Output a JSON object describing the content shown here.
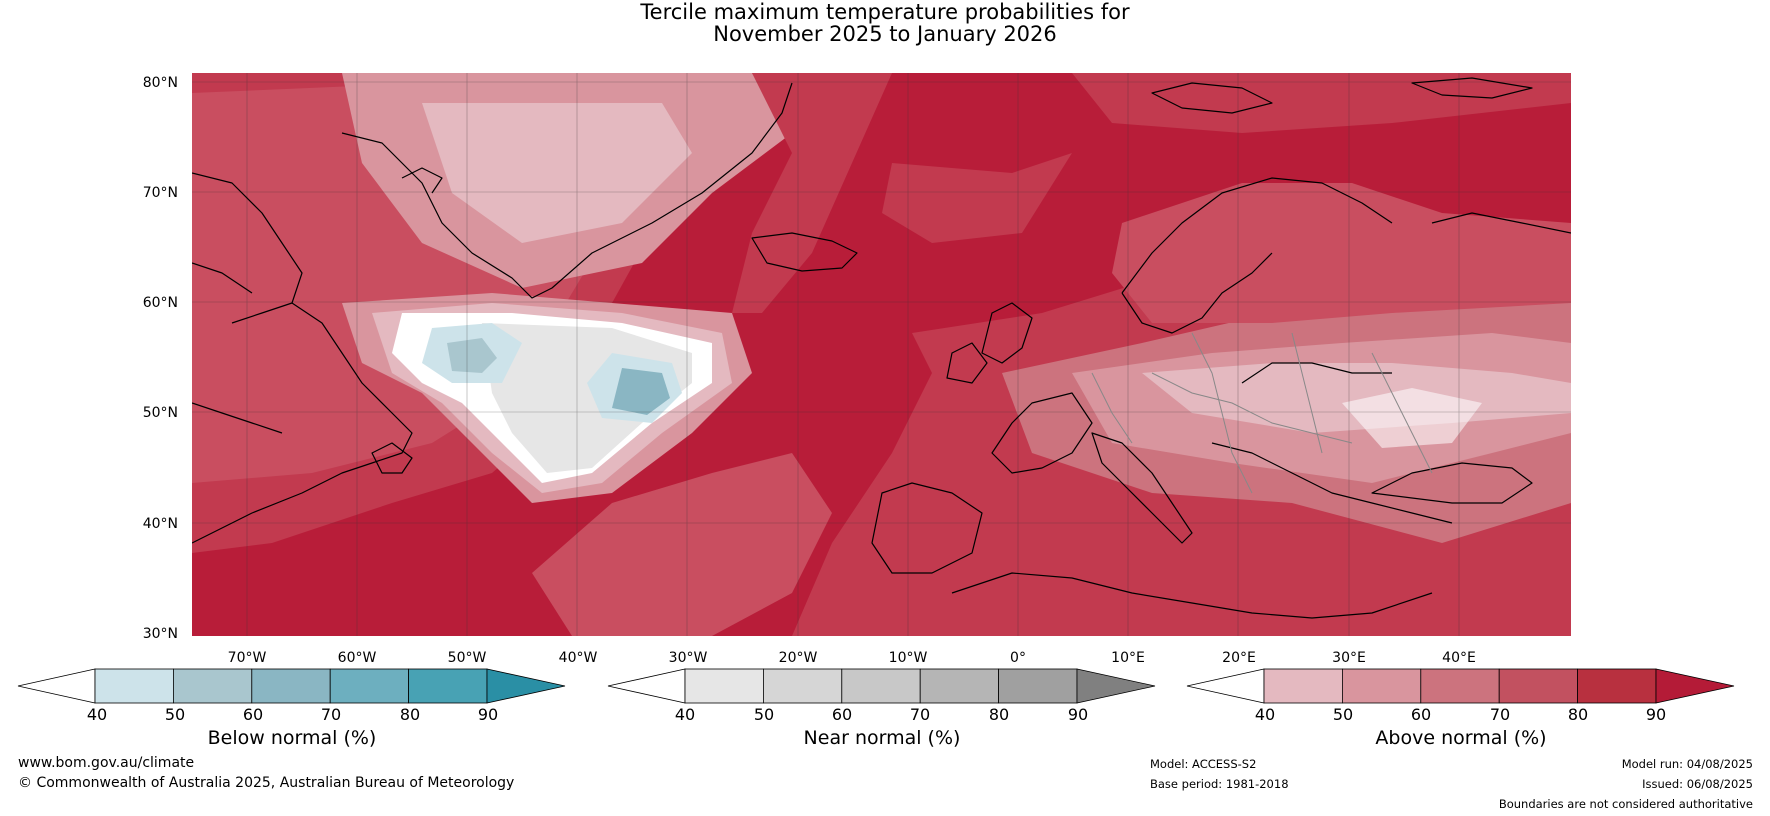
{
  "title_line1": "Tercile maximum temperature probabilities for",
  "title_line2": "November 2025 to January 2026",
  "lat_labels": [
    "80°N",
    "70°N",
    "60°N",
    "50°N",
    "40°N",
    "30°N"
  ],
  "lon_labels": [
    "70°W",
    "60°W",
    "50°W",
    "40°W",
    "30°W",
    "20°W",
    "10°W",
    "0°",
    "10°E",
    "20°E",
    "30°E",
    "40°E"
  ],
  "colorbars": [
    {
      "label": "Below normal (%)",
      "ticks": [
        "40",
        "50",
        "60",
        "70",
        "80",
        "90"
      ],
      "colors": [
        "#ffffff",
        "#cde3ea",
        "#a9c6ce",
        "#8ab6c3",
        "#6dafbf",
        "#48a2b4",
        "#2a8fa5"
      ]
    },
    {
      "label": "Near normal (%)",
      "ticks": [
        "40",
        "50",
        "60",
        "70",
        "80",
        "90"
      ],
      "colors": [
        "#ffffff",
        "#e6e6e6",
        "#d6d6d6",
        "#c8c8c8",
        "#b5b5b5",
        "#a0a0a0",
        "#808080"
      ]
    },
    {
      "label": "Above normal (%)",
      "ticks": [
        "40",
        "50",
        "60",
        "70",
        "80",
        "90"
      ],
      "colors": [
        "#ffffff",
        "#e4b9c0",
        "#d9959e",
        "#cc737e",
        "#c25160",
        "#b8303f",
        "#b41b37"
      ]
    }
  ],
  "footer": {
    "website": "www.bom.gov.au/climate",
    "copyright": "© Commonwealth of Australia 2025, Australian Bureau of Meteorology",
    "model": "Model: ACCESS-S2",
    "base_period": "Base period: 1981-2018",
    "model_run": "Model run: 04/08/2025",
    "issued": "Issued: 06/08/2025",
    "disclaimer": "Boundaries are not considered authoritative"
  }
}
